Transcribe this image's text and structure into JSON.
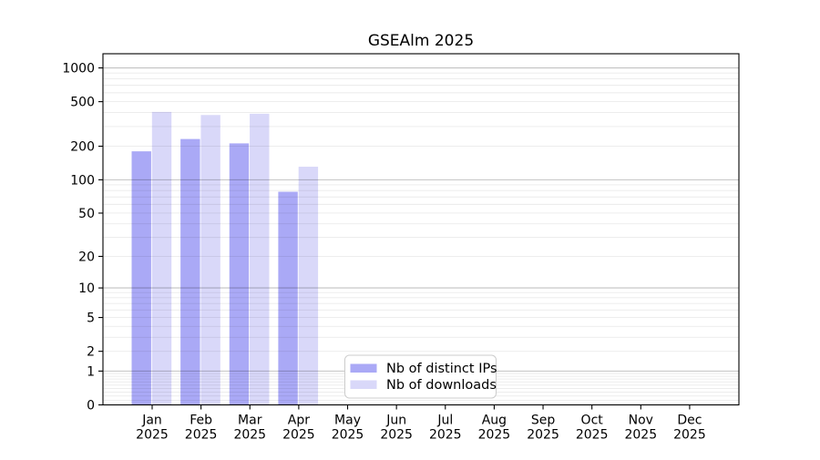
{
  "chart_data": {
    "type": "bar",
    "title": "GSEAlm 2025",
    "categories": [
      "Jan 2025",
      "Feb 2025",
      "Mar 2025",
      "Apr 2025",
      "May 2025",
      "Jun 2025",
      "Jul 2025",
      "Aug 2025",
      "Sep 2025",
      "Oct 2025",
      "Nov 2025",
      "Dec 2025"
    ],
    "x_tick_line1": [
      "Jan",
      "Feb",
      "Mar",
      "Apr",
      "May",
      "Jun",
      "Jul",
      "Aug",
      "Sep",
      "Oct",
      "Nov",
      "Dec"
    ],
    "x_tick_line2": "2025",
    "series": [
      {
        "name": "Nb of distinct IPs",
        "color": "#aaa9f6",
        "values": [
          180,
          232,
          212,
          78,
          null,
          null,
          null,
          null,
          null,
          null,
          null,
          null
        ]
      },
      {
        "name": "Nb of downloads",
        "color": "#d9d8f9",
        "values": [
          405,
          380,
          390,
          131,
          null,
          null,
          null,
          null,
          null,
          null,
          null,
          null
        ]
      }
    ],
    "y_axis": {
      "scale": "log1p",
      "ticks": [
        0,
        1,
        2,
        5,
        10,
        20,
        50,
        100,
        200,
        500,
        1000
      ],
      "range": [
        0,
        1000
      ]
    },
    "x_axis": {
      "label": "",
      "months_shown": 12
    },
    "grid": {
      "horizontal": true,
      "minor_color": "#eeeeee",
      "major_color": "#c9c9c9"
    },
    "legend": {
      "entries": [
        "Nb of distinct IPs",
        "Nb of downloads"
      ],
      "position": "lower-center"
    }
  }
}
